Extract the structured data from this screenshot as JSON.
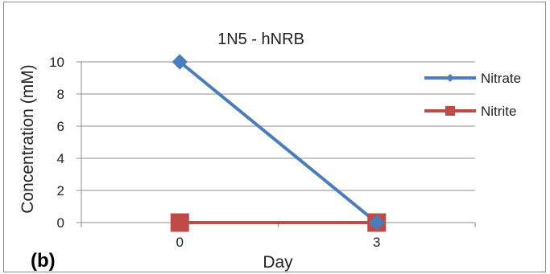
{
  "chart_data": {
    "type": "line",
    "title": "1N5 - hNRB",
    "xlabel": "Day",
    "ylabel": "Concentration (mM)",
    "categories": [
      "0",
      "3"
    ],
    "ylim": [
      0,
      10
    ],
    "yticks": [
      "0",
      "2",
      "4",
      "6",
      "8",
      "10"
    ],
    "grid": true,
    "legend_position": "right",
    "series": [
      {
        "name": "Nitrate",
        "values": [
          10,
          0
        ],
        "color": "#4a7ebb",
        "marker": "diamond"
      },
      {
        "name": "Nitrite",
        "values": [
          0,
          0
        ],
        "color": "#be4b48",
        "marker": "square"
      }
    ]
  },
  "panel_label": "(b)"
}
